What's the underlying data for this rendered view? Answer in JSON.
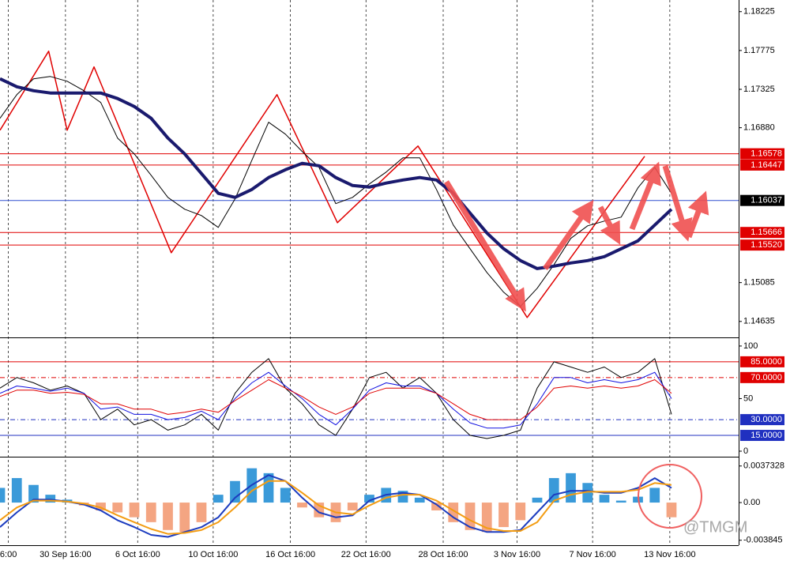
{
  "watermark": "@TMGM",
  "chart_data": [
    {
      "type": "line",
      "x": [
        0,
        1,
        2,
        3,
        4,
        5,
        6,
        7,
        8,
        9,
        10,
        11,
        12,
        13,
        14,
        15,
        16,
        17,
        18,
        19,
        20,
        21,
        22,
        23,
        24,
        25,
        26,
        27,
        28,
        29,
        30,
        31,
        32,
        33,
        34,
        35,
        36,
        37,
        38,
        39,
        40
      ],
      "xlim": [
        0,
        44
      ],
      "ylim": [
        1.1445,
        1.1836
      ],
      "yticks": [
        1.18225,
        1.17775,
        1.17325,
        {
          "value": 1.1688,
          "label": "1.16880"
        },
        1.15085,
        1.14635
      ],
      "xticks": [
        {
          "value": 0.5,
          "label": "6:00"
        },
        {
          "value": 3.9,
          "label": "30 Sep 16:00"
        },
        {
          "value": 8.2,
          "label": "6 Oct 16:00"
        },
        {
          "value": 12.7,
          "label": "10 Oct 16:00"
        },
        {
          "value": 17.3,
          "label": "16 Oct 16:00"
        },
        {
          "value": 21.8,
          "label": "22 Oct 16:00"
        },
        {
          "value": 26.4,
          "label": "28 Oct 16:00"
        },
        {
          "value": 30.8,
          "label": "3 Nov 16:00"
        },
        {
          "value": 35.3,
          "label": "7 Nov 16:00"
        },
        {
          "value": 39.9,
          "label": "13 Nov 16:00"
        }
      ],
      "levels": [
        {
          "value": 1.16578,
          "label": "1.16578",
          "color": "#e00000",
          "box": "#e00000"
        },
        {
          "value": 1.16447,
          "label": "1.16447",
          "color": "#e00000",
          "box": "#e00000"
        },
        {
          "value": 1.16037,
          "label": "1.16037",
          "color": "#3050d0",
          "box": "#000000"
        },
        {
          "value": 1.15666,
          "label": "1.15666",
          "color": "#e00000",
          "box": "#e00000"
        },
        {
          "value": 1.1552,
          "label": "1.15520",
          "color": "#e00000",
          "box": "#e00000"
        }
      ],
      "series": [
        {
          "color": "#000000",
          "values": [
            1.16989,
            1.17263,
            1.17447,
            1.17474,
            1.17419,
            1.17309,
            1.17172,
            1.1676,
            1.16576,
            1.16329,
            1.16073,
            1.15935,
            1.15862,
            1.15725,
            1.16054,
            1.16503,
            1.16943,
            1.16805,
            1.16604,
            1.16421,
            1.16,
            1.16073,
            1.16228,
            1.16366,
            1.16531,
            1.16531,
            1.16164,
            1.15752,
            1.15477,
            1.15203,
            1.14974,
            1.14809,
            1.1502,
            1.15294,
            1.15597,
            1.15743,
            1.15798,
            1.15844,
            1.16183,
            1.16421,
            1.16119
          ]
        },
        {
          "color": "#1a1a6e",
          "values": [
            1.17447,
            1.17355,
            1.17309,
            1.17282,
            1.17282,
            1.17282,
            1.17282,
            1.17218,
            1.17126,
            1.16989,
            1.1676,
            1.16576,
            1.16348,
            1.16119,
            1.16073,
            1.16164,
            1.16302,
            1.16393,
            1.16467,
            1.16439,
            1.16302,
            1.1621,
            1.16192,
            1.16238,
            1.16274,
            1.16302,
            1.16274,
            1.16119,
            1.1589,
            1.15661,
            1.15477,
            1.1534,
            1.15248,
            1.15276,
            1.15313,
            1.1534,
            1.15386,
            1.15477,
            1.15569,
            1.15752,
            1.15935
          ]
        }
      ],
      "zigzag": {
        "color": "#e00000",
        "x": [
          0,
          2.9,
          4,
          5.6,
          10.2,
          16.5,
          20.1,
          24.9,
          31.4,
          38.4
        ],
        "values": [
          1.16851,
          1.17767,
          1.16851,
          1.17584,
          1.15432,
          1.17263,
          1.1578,
          1.16668,
          1.14681,
          1.16549
        ]
      }
    },
    {
      "type": "line",
      "x": [
        0,
        1,
        2,
        3,
        4,
        5,
        6,
        7,
        8,
        9,
        10,
        11,
        12,
        13,
        14,
        15,
        16,
        17,
        18,
        19,
        20,
        21,
        22,
        23,
        24,
        25,
        26,
        27,
        28,
        29,
        30,
        31,
        32,
        33,
        34,
        35,
        36,
        37,
        38,
        39,
        40
      ],
      "xlim": [
        0,
        44
      ],
      "ylim": [
        -4.5,
        106.7
      ],
      "yticks": [
        100,
        50,
        0
      ],
      "levels": [
        {
          "value": 85,
          "label": "85.0000",
          "color": "#e00000",
          "box": "#e00000",
          "style": "solid"
        },
        {
          "value": 70,
          "label": "70.0000",
          "color": "#e00000",
          "box": "#e00000",
          "style": "dash-dot"
        },
        {
          "value": 30,
          "label": "30.0000",
          "color": "#2030c0",
          "box": "#2030c0",
          "style": "dash-dot"
        },
        {
          "value": 15,
          "label": "15.0000",
          "color": "#2030c0",
          "box": "#2030c0",
          "style": "solid"
        }
      ],
      "series": [
        {
          "color": "#000000",
          "values": [
            60,
            70,
            65,
            58,
            62,
            55,
            30,
            40,
            25,
            30,
            20,
            25,
            35,
            20,
            55,
            75,
            88,
            60,
            45,
            25,
            15,
            40,
            70,
            75,
            60,
            70,
            55,
            30,
            15,
            12,
            15,
            20,
            60,
            85,
            80,
            75,
            80,
            70,
            75,
            88,
            35
          ]
        },
        {
          "color": "#1010e0",
          "values": [
            55,
            62,
            60,
            57,
            60,
            55,
            40,
            42,
            35,
            35,
            30,
            32,
            38,
            30,
            50,
            65,
            75,
            62,
            50,
            35,
            25,
            40,
            58,
            65,
            62,
            62,
            55,
            40,
            27,
            22,
            22,
            25,
            45,
            70,
            70,
            65,
            68,
            65,
            68,
            75,
            50
          ]
        },
        {
          "color": "#e00000",
          "values": [
            52,
            58,
            58,
            55,
            56,
            54,
            45,
            45,
            40,
            40,
            35,
            37,
            40,
            37,
            48,
            58,
            68,
            60,
            52,
            42,
            35,
            42,
            55,
            60,
            60,
            60,
            55,
            45,
            35,
            30,
            30,
            30,
            42,
            60,
            62,
            60,
            62,
            60,
            62,
            68,
            55
          ]
        }
      ]
    },
    {
      "type": "bar",
      "x": [
        0,
        1,
        2,
        3,
        4,
        5,
        6,
        7,
        8,
        9,
        10,
        11,
        12,
        13,
        14,
        15,
        16,
        17,
        18,
        19,
        20,
        21,
        22,
        23,
        24,
        25,
        26,
        27,
        28,
        29,
        30,
        31,
        32,
        33,
        34,
        35,
        36,
        37,
        38,
        39,
        40
      ],
      "xlim": [
        0,
        44
      ],
      "ylim": [
        -0.00435,
        0.00452
      ],
      "yticks": [
        0.0037328,
        {
          "value": 0,
          "label": "0.00"
        },
        -0.003845
      ],
      "color_positive": "#3a9ad9",
      "color_negative": "#f4a582",
      "values": [
        0.0015,
        0.0025,
        0.0018,
        0.0008,
        0.0003,
        -0.0003,
        -0.0008,
        -0.001,
        -0.0015,
        -0.002,
        -0.0028,
        -0.003,
        -0.002,
        0.0008,
        0.0022,
        0.0035,
        0.003,
        0.0015,
        -0.0005,
        -0.0015,
        -0.002,
        -0.0008,
        0.0008,
        0.0015,
        0.0012,
        0.0005,
        -0.0008,
        -0.002,
        -0.0028,
        -0.003,
        -0.0025,
        -0.0018,
        0.0005,
        0.0025,
        0.003,
        0.002,
        0.0008,
        0.0002,
        0.0006,
        0.0015,
        -0.0015
      ],
      "series": [
        {
          "color": "#1c3cbf",
          "values": [
            -0.0025,
            -0.001,
            0.0003,
            0.0003,
            0.0001,
            -0.0002,
            -0.0008,
            -0.0018,
            -0.0025,
            -0.0033,
            -0.0035,
            -0.003,
            -0.0025,
            -0.0015,
            0.0005,
            0.0018,
            0.0028,
            0.0022,
            0.0005,
            -0.001,
            -0.0015,
            -0.0013,
            0.0002,
            0.0008,
            0.001,
            0.0008,
            -0.0002,
            -0.0015,
            -0.0025,
            -0.003,
            -0.003,
            -0.0028,
            -0.001,
            0.0008,
            0.0012,
            0.0012,
            0.001,
            0.001,
            0.0015,
            0.0025,
            0.0015
          ]
        },
        {
          "color": "#f39c12",
          "values": [
            -0.0018,
            -0.0005,
            0.0002,
            0.0002,
            0.0001,
            -0.0001,
            -0.0005,
            -0.0013,
            -0.002,
            -0.0027,
            -0.0032,
            -0.0031,
            -0.0028,
            -0.002,
            -0.0005,
            0.0012,
            0.0022,
            0.0022,
            0.001,
            -0.0003,
            -0.001,
            -0.0012,
            -0.0003,
            0.0005,
            0.0008,
            0.0008,
            0.0002,
            -0.0008,
            -0.0018,
            -0.0026,
            -0.0029,
            -0.0029,
            -0.002,
            0.0002,
            0.0008,
            0.0011,
            0.0011,
            0.0011,
            0.0013,
            0.002,
            0.0018
          ]
        }
      ]
    }
  ]
}
